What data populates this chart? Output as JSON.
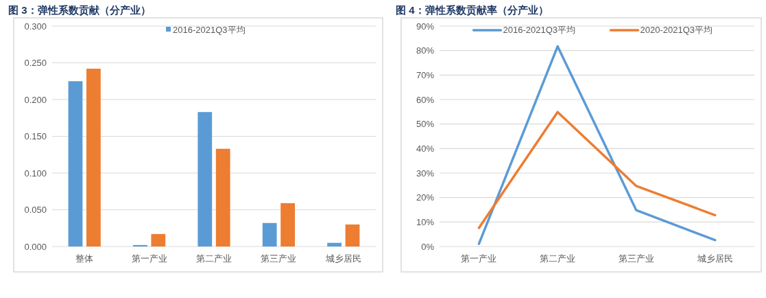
{
  "chart_data": [
    {
      "type": "bar",
      "title": "图 3：弹性系数贡献（分产业）",
      "categories": [
        "整体",
        "第一产业",
        "第二产业",
        "第三产业",
        "城乡居民"
      ],
      "series": [
        {
          "name": "2016-2021Q3平均",
          "color": "#5b9bd5",
          "values": [
            0.225,
            0.002,
            0.183,
            0.032,
            0.005
          ]
        },
        {
          "color": "#ed7d31",
          "values": [
            0.242,
            0.017,
            0.133,
            0.059,
            0.03
          ]
        }
      ],
      "ylim": [
        0,
        0.3
      ],
      "yticks": [
        {
          "value": 0,
          "label": "0.000"
        },
        {
          "value": 0.05,
          "label": "0.050"
        },
        {
          "value": 0.1,
          "label": "0.100"
        },
        {
          "value": 0.15,
          "label": "0.150"
        },
        {
          "value": 0.2,
          "label": "0.200"
        },
        {
          "value": 0.25,
          "label": "0.250"
        },
        {
          "value": 0.3,
          "label": "0.300"
        }
      ],
      "grid": "y",
      "legend": "top"
    },
    {
      "type": "line",
      "title": "图 4：弹性系数贡献率（分产业）",
      "categories": [
        "第一产业",
        "第二产业",
        "第三产业",
        "城乡居民"
      ],
      "series": [
        {
          "name": "2016-2021Q3平均",
          "color": "#5b9bd5",
          "values": [
            1.1,
            81.7,
            14.8,
            2.6
          ]
        },
        {
          "name": "2020-2021Q3平均",
          "color": "#ed7d31",
          "values": [
            7.6,
            54.9,
            24.7,
            12.8
          ]
        }
      ],
      "ylim": [
        0,
        90
      ],
      "yticks": [
        {
          "value": 0,
          "label": "0%"
        },
        {
          "value": 10,
          "label": "10%"
        },
        {
          "value": 20,
          "label": "20%"
        },
        {
          "value": 30,
          "label": "30%"
        },
        {
          "value": 40,
          "label": "40%"
        },
        {
          "value": 50,
          "label": "50%"
        },
        {
          "value": 60,
          "label": "60%"
        },
        {
          "value": 70,
          "label": "70%"
        },
        {
          "value": 80,
          "label": "80%"
        },
        {
          "value": 90,
          "label": "90%"
        }
      ],
      "grid": "y",
      "legend": "top",
      "marker": "none",
      "line_style": "solid"
    }
  ]
}
